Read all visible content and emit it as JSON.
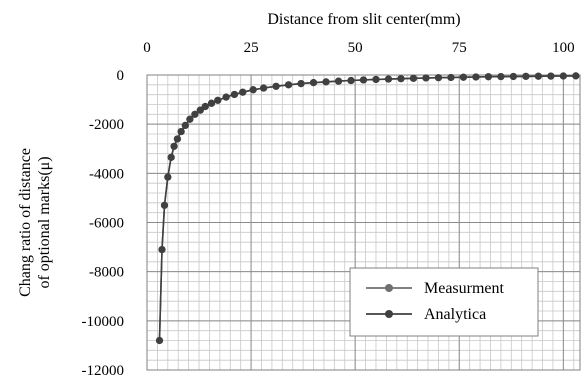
{
  "chart_data": {
    "type": "line",
    "title": "",
    "xlabel": "Distance from slit center(mm)",
    "ylabel_lines": [
      "Chang ratio of distance",
      "of optional marks(μ)"
    ],
    "xlim": [
      0,
      104
    ],
    "ylim": [
      -12000,
      0
    ],
    "x_ticks": [
      0,
      25,
      50,
      75,
      100
    ],
    "y_ticks": [
      0,
      -2000,
      -4000,
      -6000,
      -8000,
      -10000,
      -12000
    ],
    "x_minor_step": 2.5,
    "y_minor_step": 400,
    "x_axis_position": "top",
    "grid": true,
    "legend_position": "bottom-right",
    "series": [
      {
        "name": "Measurment",
        "color": "#707070",
        "marker": "circle",
        "x": [
          3,
          3.6,
          4.2,
          5,
          5.8,
          6.5,
          7.3,
          8.2,
          9.2,
          10.3,
          11.5,
          12.8,
          14,
          15.5,
          17,
          19,
          21,
          23,
          25.5,
          28,
          31,
          34,
          37,
          40,
          43,
          46,
          49,
          52,
          55,
          58,
          61,
          64,
          67,
          70,
          73,
          76,
          79,
          82,
          85,
          88,
          91,
          94,
          97,
          100,
          103
        ],
        "y": [
          -10800,
          -7100,
          -5300,
          -4150,
          -3350,
          -2900,
          -2600,
          -2300,
          -2050,
          -1800,
          -1600,
          -1430,
          -1280,
          -1150,
          -1030,
          -900,
          -790,
          -700,
          -600,
          -530,
          -460,
          -400,
          -350,
          -310,
          -280,
          -250,
          -225,
          -200,
          -180,
          -165,
          -150,
          -135,
          -120,
          -110,
          -100,
          -90,
          -80,
          -70,
          -65,
          -60,
          -55,
          -50,
          -45,
          -40,
          -35
        ]
      },
      {
        "name": "Analytica",
        "color": "#404040",
        "marker": "circle",
        "x": [
          3,
          3.6,
          4.2,
          5,
          5.8,
          6.5,
          7.3,
          8.2,
          9.2,
          10.3,
          11.5,
          12.8,
          14,
          15.5,
          17,
          19,
          21,
          23,
          25.5,
          28,
          31,
          34,
          37,
          40,
          43,
          46,
          49,
          52,
          55,
          58,
          61,
          64,
          67,
          70,
          73,
          76,
          79,
          82,
          85,
          88,
          91,
          94,
          97,
          100,
          103
        ],
        "y": [
          -10800,
          -7100,
          -5300,
          -4150,
          -3350,
          -2900,
          -2600,
          -2300,
          -2050,
          -1800,
          -1600,
          -1430,
          -1280,
          -1150,
          -1030,
          -900,
          -790,
          -700,
          -600,
          -530,
          -460,
          -400,
          -350,
          -310,
          -280,
          -250,
          -225,
          -200,
          -180,
          -165,
          -150,
          -135,
          -120,
          -110,
          -100,
          -90,
          -80,
          -70,
          -65,
          -60,
          -55,
          -50,
          -45,
          -40,
          -35
        ]
      }
    ]
  }
}
